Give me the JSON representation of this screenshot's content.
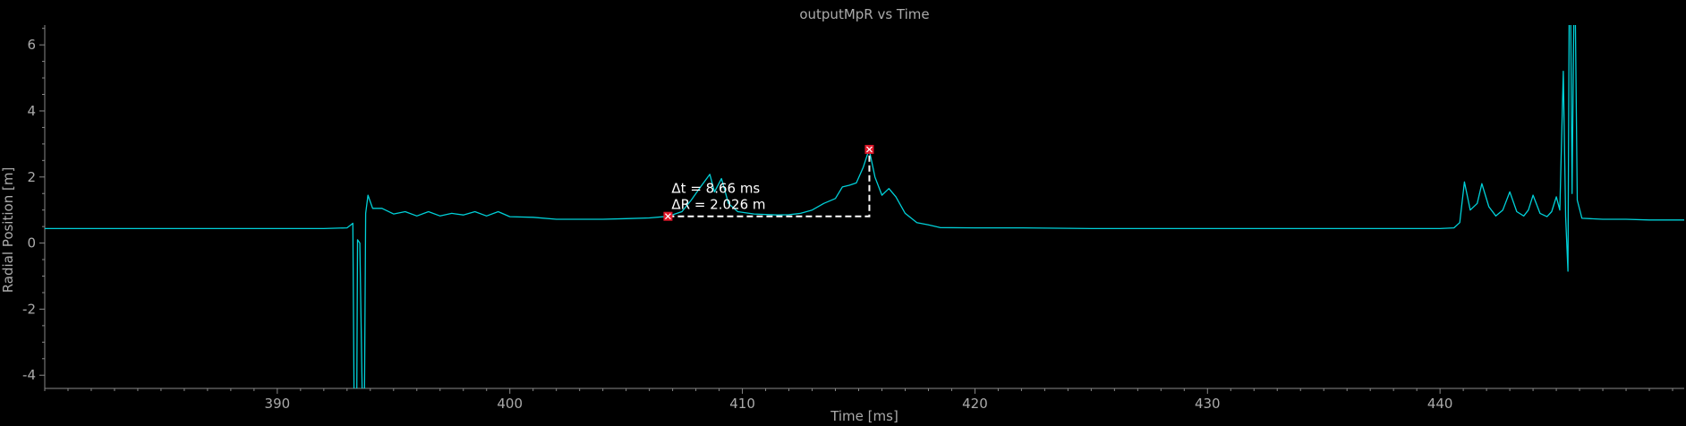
{
  "chart_data": {
    "type": "line",
    "title": "outputMpR vs Time",
    "xlabel": "Time [ms]",
    "ylabel": "Radial Position [m]",
    "xlim": [
      380,
      450.5
    ],
    "ylim": [
      -4.4,
      6.6
    ],
    "x_ticks": [
      390,
      400,
      410,
      420,
      430,
      440
    ],
    "y_ticks": [
      -4,
      -2,
      0,
      2,
      4,
      6
    ],
    "x_minor_step": 1,
    "y_minor_step": 0.5,
    "grid": false,
    "colors": {
      "background": "#000000",
      "line": "#00d0d8",
      "axis": "#888888",
      "text": "#aaaaaa",
      "marker": "#e0182a",
      "measure": "#ffffff"
    },
    "series": [
      {
        "points": [
          [
            380,
            0.44
          ],
          [
            385,
            0.44
          ],
          [
            390,
            0.44
          ],
          [
            392,
            0.44
          ],
          [
            393,
            0.46
          ],
          [
            393.25,
            0.6
          ],
          [
            393.3,
            -4.5
          ],
          [
            393.42,
            -4.5
          ],
          [
            393.45,
            0.1
          ],
          [
            393.55,
            0.0
          ],
          [
            393.65,
            -4.5
          ],
          [
            393.75,
            -4.5
          ],
          [
            393.8,
            0.9
          ],
          [
            393.9,
            1.45
          ],
          [
            394.1,
            1.05
          ],
          [
            394.5,
            1.05
          ],
          [
            395,
            0.88
          ],
          [
            395.5,
            0.95
          ],
          [
            396,
            0.82
          ],
          [
            396.5,
            0.95
          ],
          [
            397,
            0.82
          ],
          [
            397.5,
            0.9
          ],
          [
            398,
            0.85
          ],
          [
            398.5,
            0.95
          ],
          [
            399,
            0.82
          ],
          [
            399.5,
            0.95
          ],
          [
            400,
            0.8
          ],
          [
            401,
            0.78
          ],
          [
            402,
            0.72
          ],
          [
            403,
            0.72
          ],
          [
            404,
            0.72
          ],
          [
            405,
            0.74
          ],
          [
            406,
            0.76
          ],
          [
            406.8,
            0.81
          ],
          [
            407.4,
            0.95
          ],
          [
            407.8,
            1.3
          ],
          [
            408.2,
            1.7
          ],
          [
            408.6,
            2.08
          ],
          [
            408.8,
            1.55
          ],
          [
            409.1,
            1.95
          ],
          [
            409.4,
            1.2
          ],
          [
            409.8,
            0.95
          ],
          [
            410.5,
            0.88
          ],
          [
            411.5,
            0.85
          ],
          [
            412,
            0.86
          ],
          [
            412.5,
            0.9
          ],
          [
            413,
            1.0
          ],
          [
            413.5,
            1.2
          ],
          [
            414,
            1.35
          ],
          [
            414.3,
            1.7
          ],
          [
            414.6,
            1.75
          ],
          [
            414.9,
            1.82
          ],
          [
            415.2,
            2.3
          ],
          [
            415.45,
            2.84
          ],
          [
            415.7,
            2.0
          ],
          [
            416,
            1.45
          ],
          [
            416.3,
            1.65
          ],
          [
            416.6,
            1.4
          ],
          [
            417,
            0.9
          ],
          [
            417.5,
            0.62
          ],
          [
            418,
            0.55
          ],
          [
            418.5,
            0.47
          ],
          [
            420,
            0.46
          ],
          [
            422,
            0.46
          ],
          [
            425,
            0.44
          ],
          [
            430,
            0.44
          ],
          [
            435,
            0.44
          ],
          [
            440,
            0.44
          ],
          [
            440.6,
            0.46
          ],
          [
            440.85,
            0.62
          ],
          [
            441.05,
            1.85
          ],
          [
            441.3,
            1.0
          ],
          [
            441.6,
            1.2
          ],
          [
            441.8,
            1.8
          ],
          [
            442.1,
            1.1
          ],
          [
            442.4,
            0.82
          ],
          [
            442.7,
            1.0
          ],
          [
            443.0,
            1.55
          ],
          [
            443.3,
            0.95
          ],
          [
            443.6,
            0.82
          ],
          [
            443.8,
            1.0
          ],
          [
            444.0,
            1.45
          ],
          [
            444.3,
            0.9
          ],
          [
            444.6,
            0.8
          ],
          [
            444.8,
            0.95
          ],
          [
            445.0,
            1.4
          ],
          [
            445.15,
            1.0
          ],
          [
            445.3,
            5.2
          ],
          [
            445.4,
            0.8
          ],
          [
            445.5,
            -0.85
          ],
          [
            445.55,
            6.7
          ],
          [
            445.62,
            6.7
          ],
          [
            445.68,
            1.5
          ],
          [
            445.75,
            6.7
          ],
          [
            445.82,
            6.7
          ],
          [
            445.9,
            1.3
          ],
          [
            446.1,
            0.75
          ],
          [
            447,
            0.72
          ],
          [
            448,
            0.72
          ],
          [
            449,
            0.7
          ],
          [
            450.5,
            0.7
          ]
        ]
      }
    ],
    "measurement": {
      "start": [
        406.8,
        0.81
      ],
      "end": [
        415.46,
        2.836
      ],
      "dt_text": "Δt = 8.66 ms",
      "dr_text": "ΔR = 2.026 m"
    }
  }
}
